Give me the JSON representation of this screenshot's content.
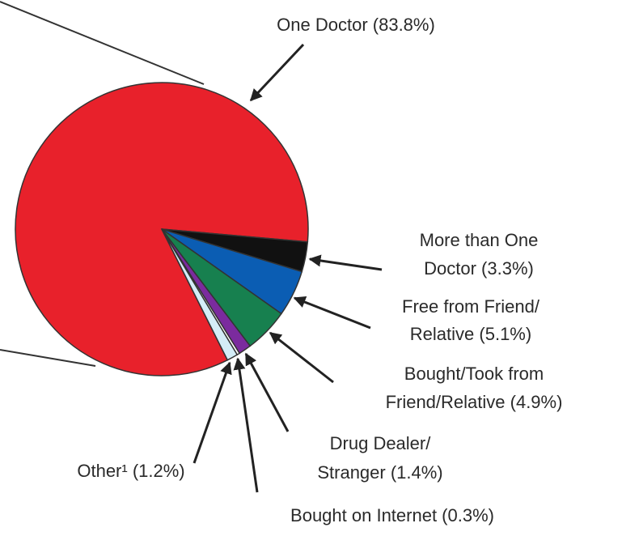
{
  "chart_data": {
    "type": "pie",
    "categories": [
      [
        "One Doctor (83.8%)"
      ],
      [
        "More than One",
        "Doctor (3.3%)"
      ],
      [
        "Free from Friend/",
        "Relative (5.1%)"
      ],
      [
        "Bought/Took from",
        "Friend/Relative (4.9%)"
      ],
      [
        "Drug Dealer/",
        "Stranger (1.4%)"
      ],
      [
        "Bought on Internet (0.3%)"
      ],
      [
        "Other¹ (1.2%)"
      ]
    ],
    "values": [
      83.8,
      3.3,
      5.1,
      4.9,
      1.4,
      0.3,
      1.2
    ],
    "colors": [
      "#e8212b",
      "#111111",
      "#0b5db3",
      "#17804f",
      "#7b2b9e",
      "#ffffff",
      "#d4edf7"
    ]
  }
}
